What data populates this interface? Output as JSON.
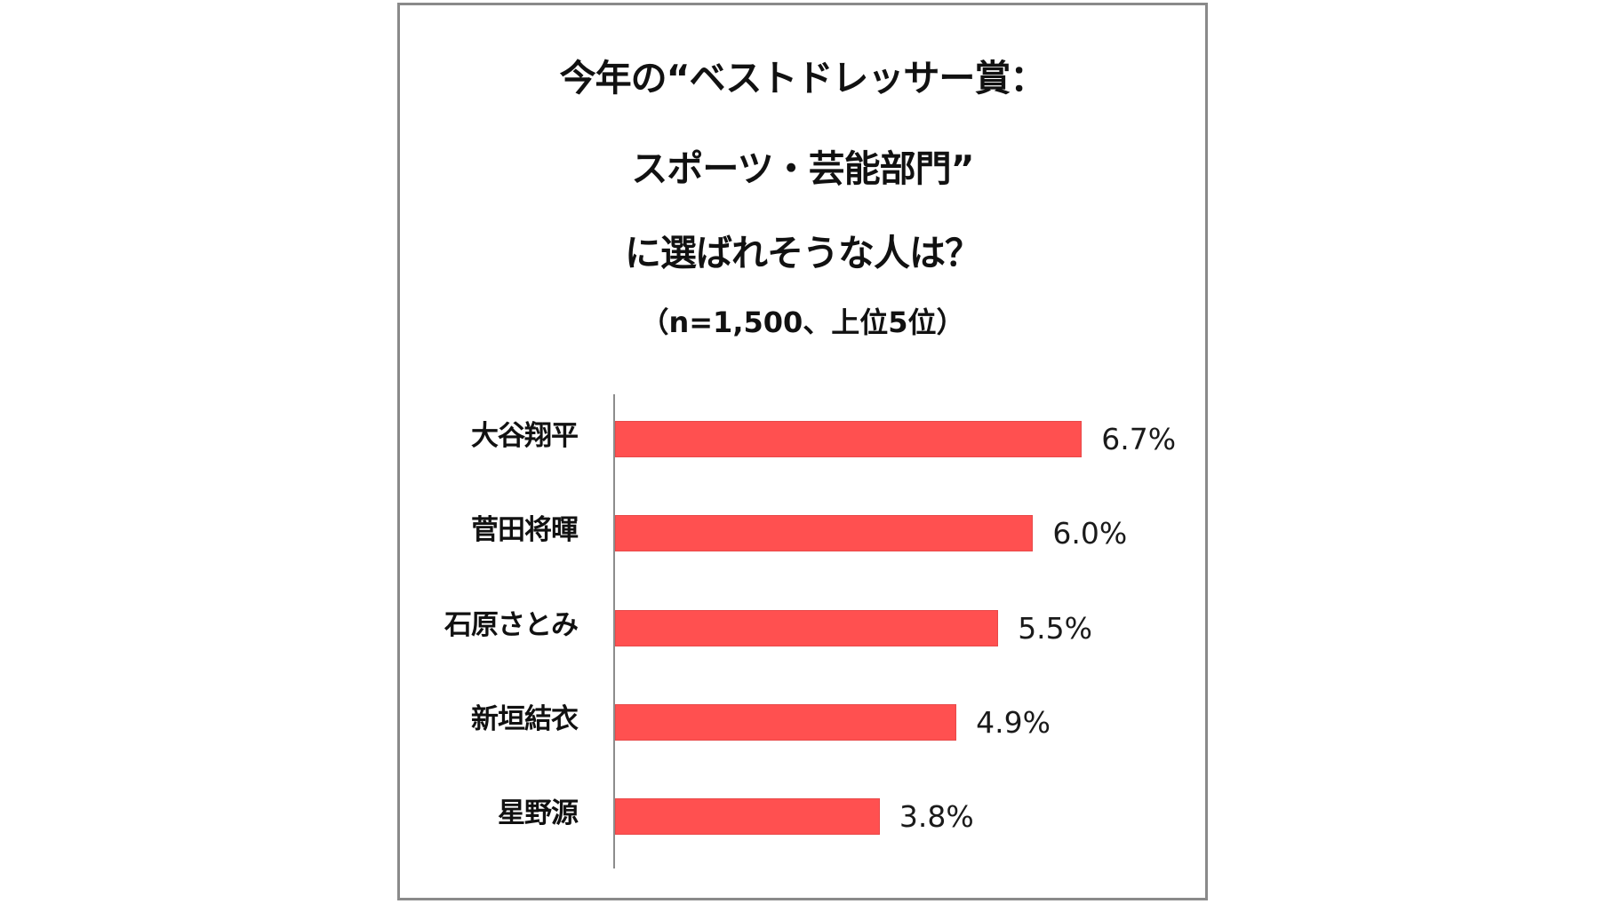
{
  "chart": {
    "title_lines": [
      "今年の“ベストドレッサー賞：",
      "スポーツ・芸能部門”",
      "に選ばれそうな人は？"
    ],
    "subtitle": "（n=1,500、上位5位）",
    "bar_color": "#FF5050",
    "axis_color": "#8C8C8C",
    "frame_border_color": "#8A8A8A"
  },
  "chart_data": {
    "type": "bar",
    "orientation": "horizontal",
    "title": "今年の“ベストドレッサー賞：スポーツ・芸能部門”に選ばれそうな人は？",
    "subtitle": "（n=1,500、上位5位）",
    "categories": [
      "大谷翔平",
      "菅田将暉",
      "石原さとみ",
      "新垣結衣",
      "星野源"
    ],
    "values": [
      6.7,
      6.0,
      5.5,
      4.9,
      3.8
    ],
    "value_labels": [
      "6.7%",
      "6.0%",
      "5.5%",
      "4.9%",
      "3.8%"
    ],
    "unit": "%",
    "xlabel": "",
    "ylabel": "",
    "grid": false,
    "legend": null,
    "xlim": [
      0,
      7.5
    ]
  }
}
